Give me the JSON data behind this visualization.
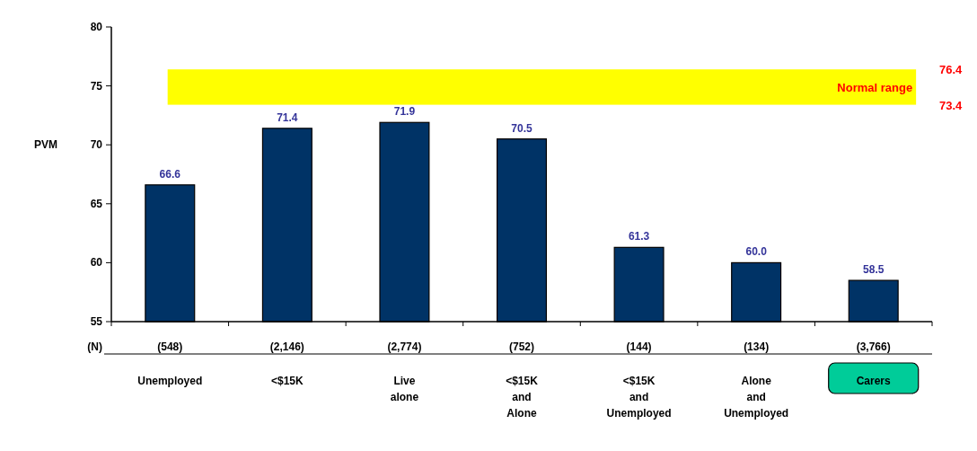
{
  "chart_data": {
    "type": "bar",
    "ylabel": "PVM",
    "categories": [
      "Unemployed",
      "<$15K",
      "Live alone",
      "<$15K and Alone",
      "<$15K and Unemployed",
      "Alone and Unemployed",
      "Carers"
    ],
    "series": [
      {
        "color": "#003366",
        "values": [
          66.6,
          71.4,
          71.9,
          70.5,
          61.3,
          60.0,
          58.5
        ]
      }
    ],
    "value_labels": [
      "66.6",
      "71.4",
      "71.9",
      "70.5",
      "61.3",
      "60.0",
      "58.5"
    ],
    "ylim": [
      55,
      80
    ],
    "yticks": [
      55,
      60,
      65,
      70,
      75,
      80
    ],
    "grid": false,
    "bands": [
      {
        "axis": "y",
        "from": 73.4,
        "to": 76.4,
        "label": "Normal range",
        "color": "#ffff00"
      }
    ],
    "annotations": [
      "76.4",
      "73.4",
      "(N)",
      "(548)",
      "(2,146)",
      "(2,774)",
      "(752)",
      "(144)",
      "(134)",
      "(3,766)"
    ]
  }
}
